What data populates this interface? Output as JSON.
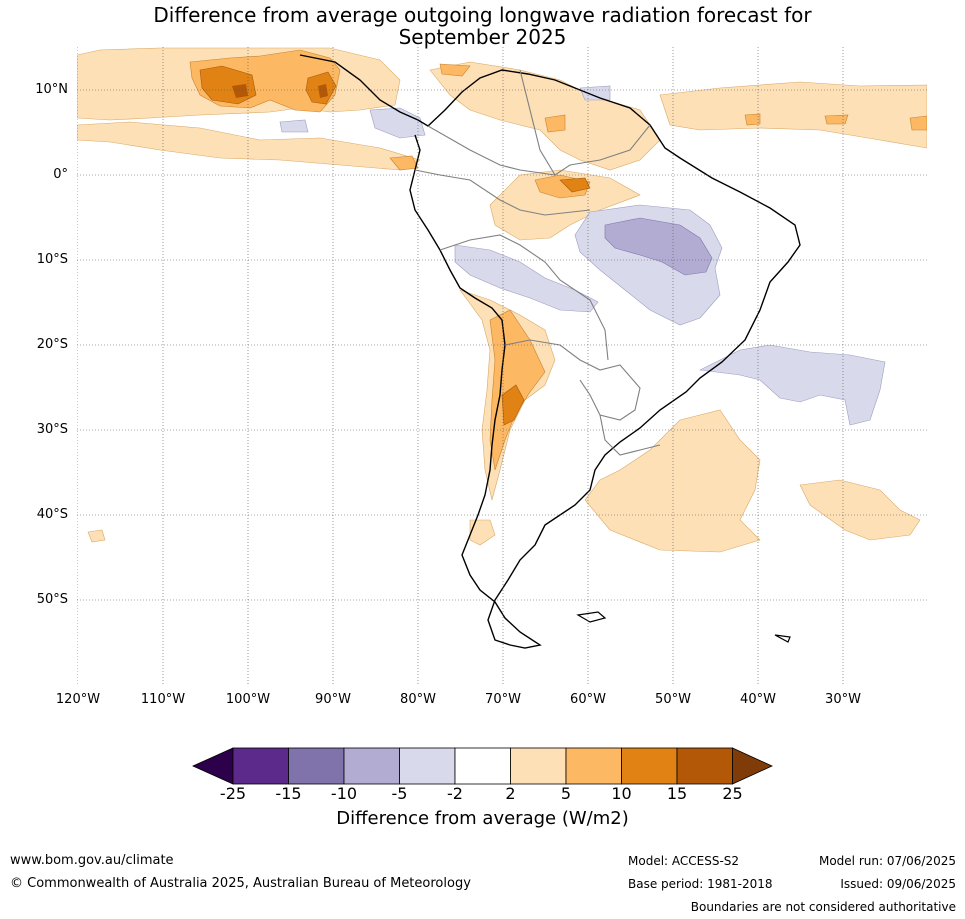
{
  "title_line1": "Difference from average outgoing longwave radiation forecast for",
  "title_line2": "September 2025",
  "lat_labels": [
    "10°N",
    "0°",
    "10°S",
    "20°S",
    "30°S",
    "40°S",
    "50°S"
  ],
  "lon_labels": [
    "120°W",
    "110°W",
    "100°W",
    "90°W",
    "80°W",
    "70°W",
    "60°W",
    "50°W",
    "40°W",
    "30°W"
  ],
  "colorbar": {
    "ticks": [
      "-25",
      "-15",
      "-10",
      "-5",
      "-2",
      "2",
      "5",
      "10",
      "15",
      "25"
    ],
    "colors": [
      "#2d004b",
      "#5b2a8a",
      "#8073ac",
      "#b2abd2",
      "#d8daeb",
      "#ffffff",
      "#fee0b6",
      "#fdb863",
      "#e08214",
      "#b35806",
      "#7f3b08"
    ],
    "title": "Difference from average (W/m2)"
  },
  "footer": {
    "url": "www.bom.gov.au/climate",
    "copyright": "© Commonwealth of Australia 2025, Australian Bureau of Meteorology",
    "model": "Model: ACCESS-S2",
    "base_period": "Base period: 1981-2018",
    "model_run": "Model run: 07/06/2025",
    "issued": "Issued: 09/06/2025",
    "disclaimer": "Boundaries are not considered authoritative"
  }
}
